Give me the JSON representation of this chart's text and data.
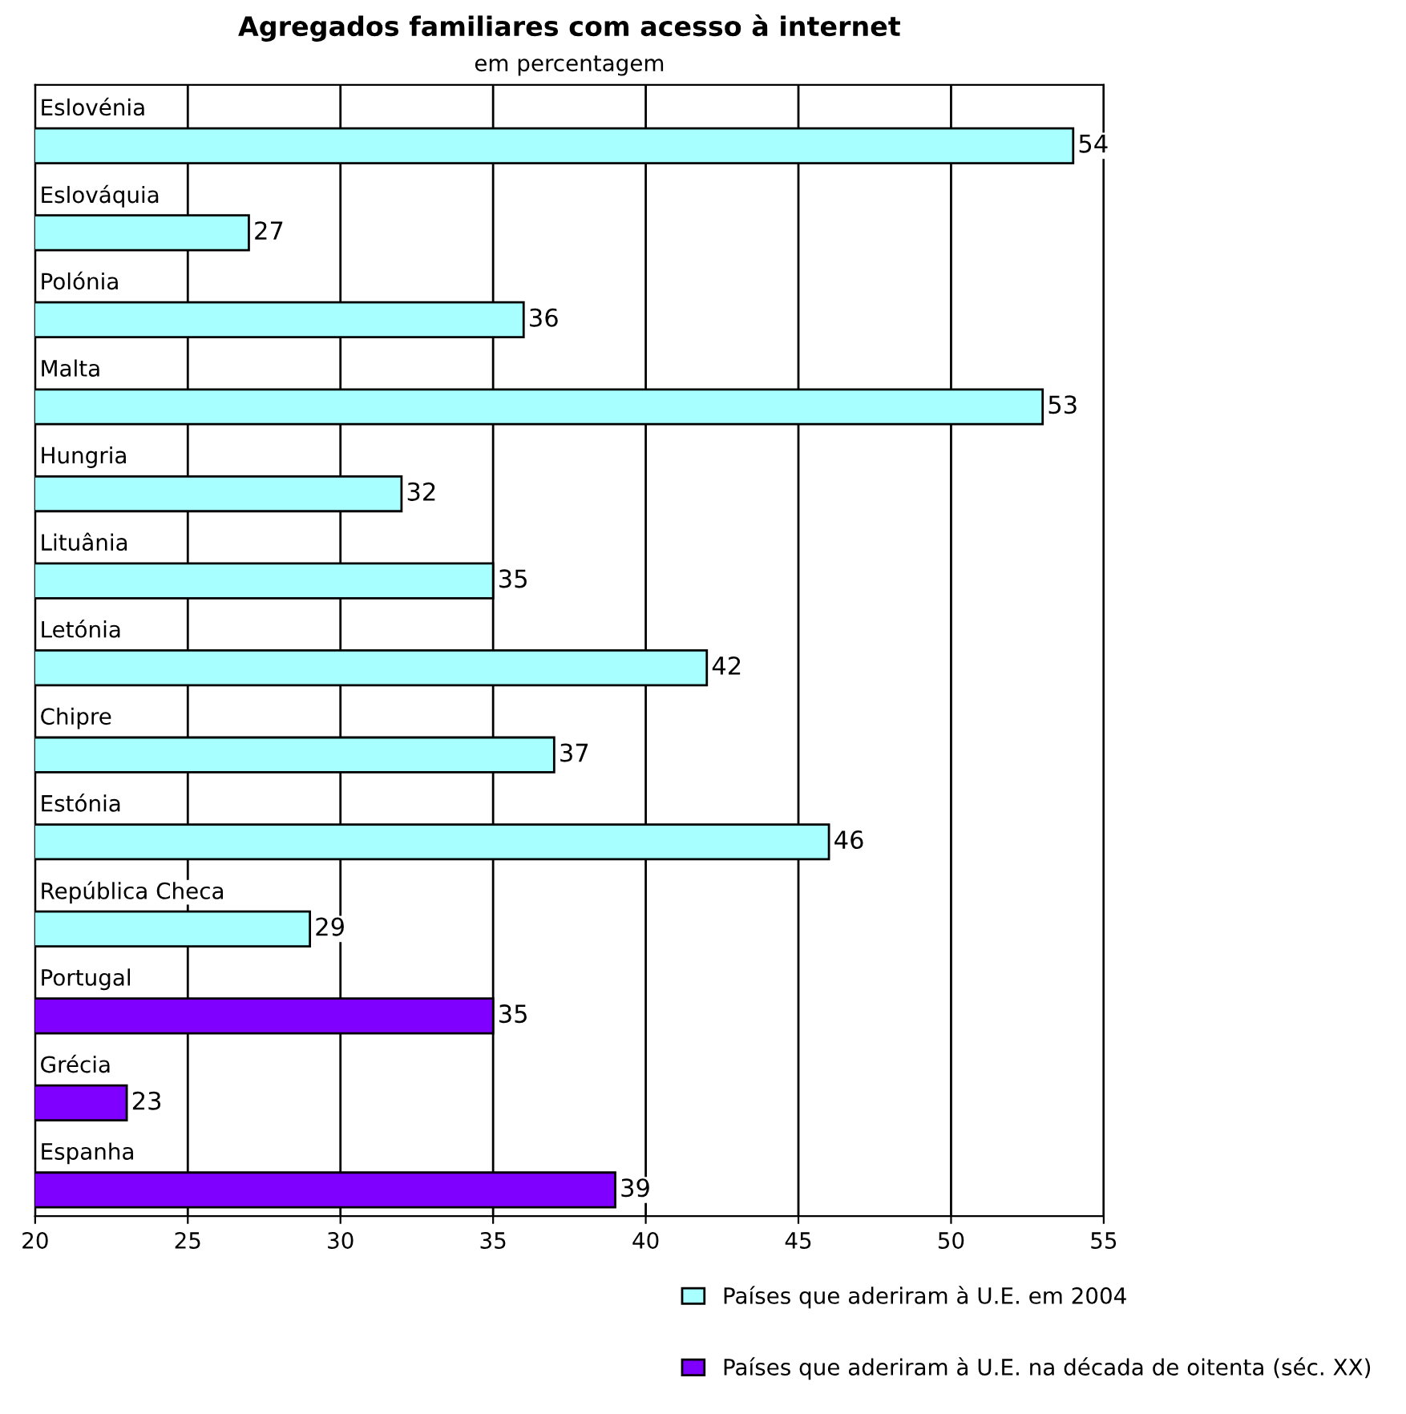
{
  "chart_data": {
    "type": "bar",
    "orientation": "horizontal",
    "title": "Agregados familiares com acesso à internet",
    "subtitle": "em percentagem",
    "categories": [
      "Eslovénia",
      "Eslováquia",
      "Polónia",
      "Malta",
      "Hungria",
      "Lituânia",
      "Letónia",
      "Chipre",
      "Estónia",
      "República Checa",
      "Portugal",
      "Grécia",
      "Espanha"
    ],
    "series": [
      {
        "name": "Países que aderiram à U.E. em 2004",
        "color": "#a8ffff",
        "values": [
          54,
          27,
          36,
          53,
          32,
          35,
          42,
          37,
          46,
          29,
          null,
          null,
          null
        ]
      },
      {
        "name": "Países que aderiram à U.E. na década de oitenta (séc. XX)",
        "color": "#8000ff",
        "values": [
          null,
          null,
          null,
          null,
          null,
          null,
          null,
          null,
          null,
          null,
          35,
          23,
          39
        ]
      }
    ],
    "xlim": [
      20,
      55
    ],
    "xticks": [
      20,
      25,
      30,
      35,
      40,
      45,
      50,
      55
    ],
    "grid": "x",
    "data_labels": true,
    "legend": "bottom right"
  }
}
